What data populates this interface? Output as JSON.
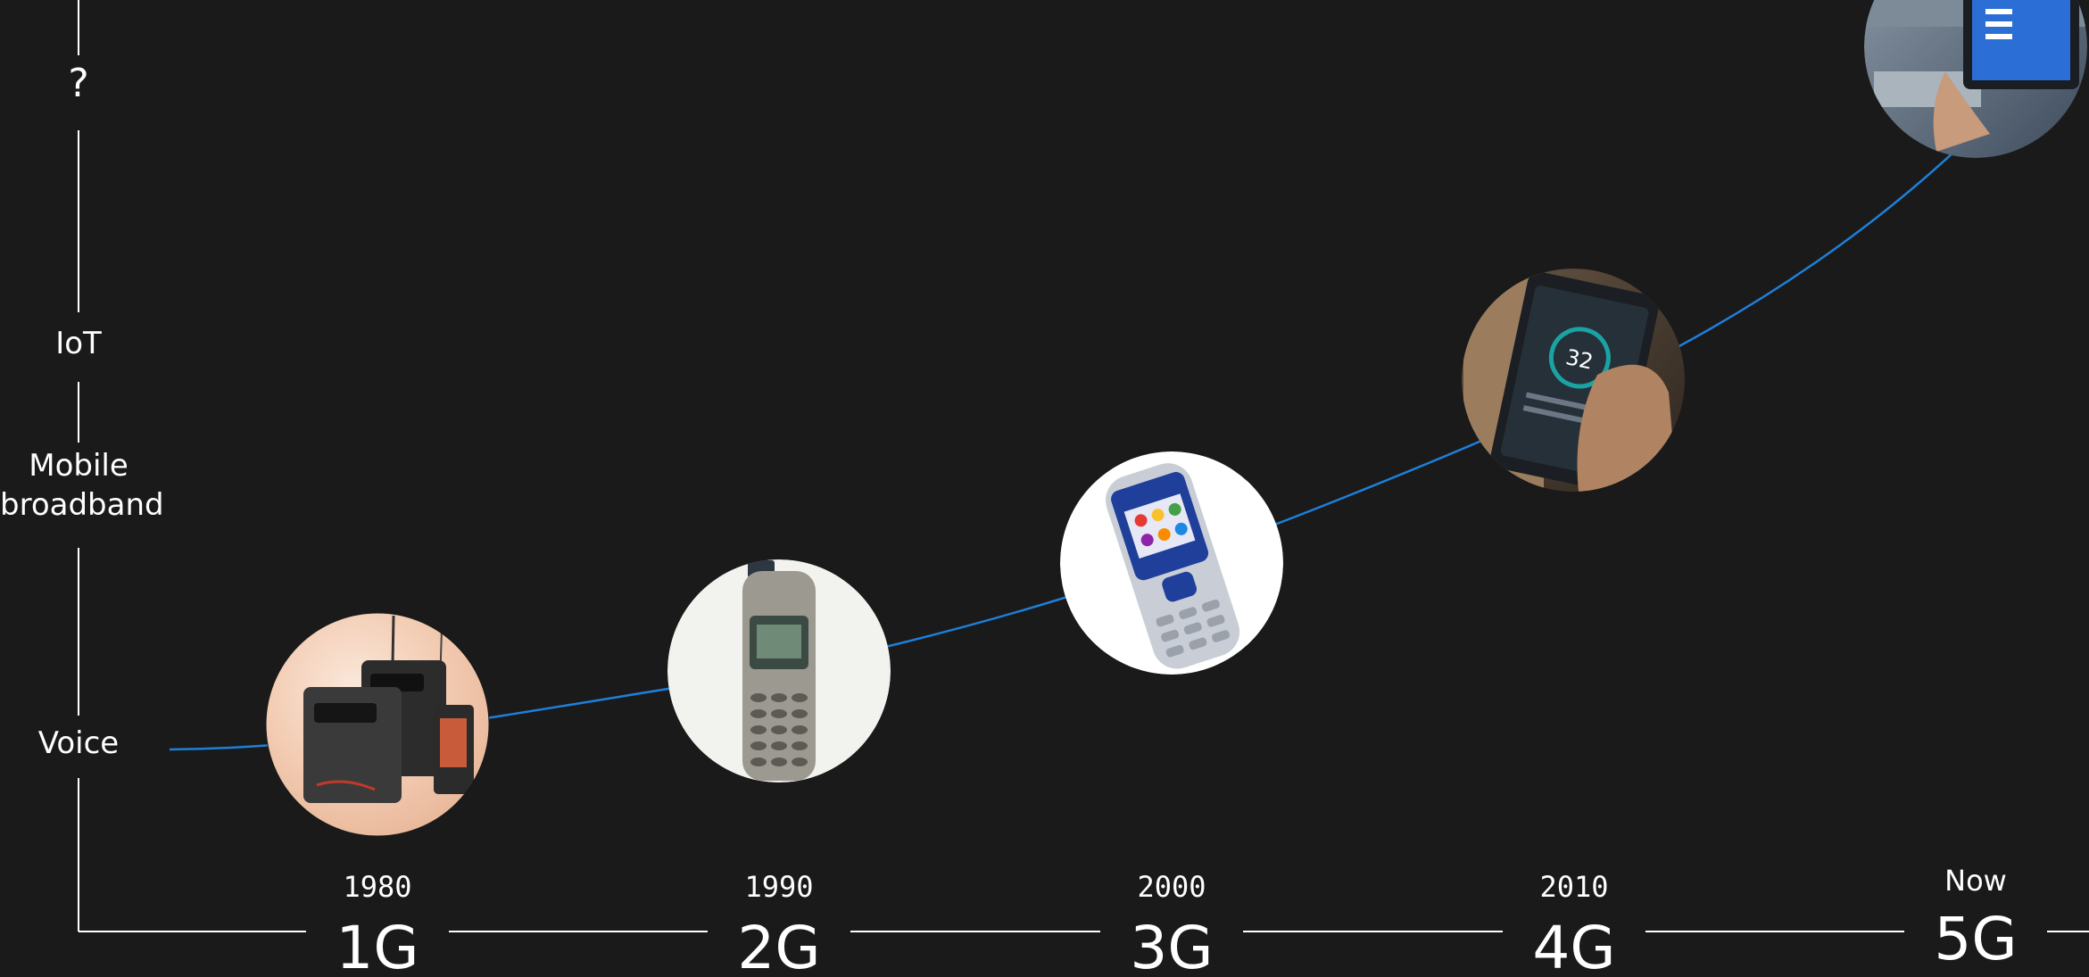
{
  "y_axis_labels": {
    "top": "?",
    "iot": "IoT",
    "mobile_broadband_line1": "Mobile",
    "mobile_broadband_line2": "broadband",
    "voice": "Voice"
  },
  "generations": [
    {
      "year": "1980",
      "label": "1G",
      "device": "briefcase-phone-photo"
    },
    {
      "year": "1990",
      "label": "2G",
      "device": "candybar-phone-photo"
    },
    {
      "year": "2000",
      "label": "3G",
      "device": "color-feature-phone-photo"
    },
    {
      "year": "2010",
      "label": "4G",
      "device": "smartphone-photo"
    },
    {
      "year": "Now",
      "label": "5G",
      "device": "industrial-tablet-photo"
    }
  ],
  "colors": {
    "background": "#1a1a1a",
    "curve": "#1e7fd8",
    "axis": "#ffffff",
    "text": "#ffffff"
  }
}
